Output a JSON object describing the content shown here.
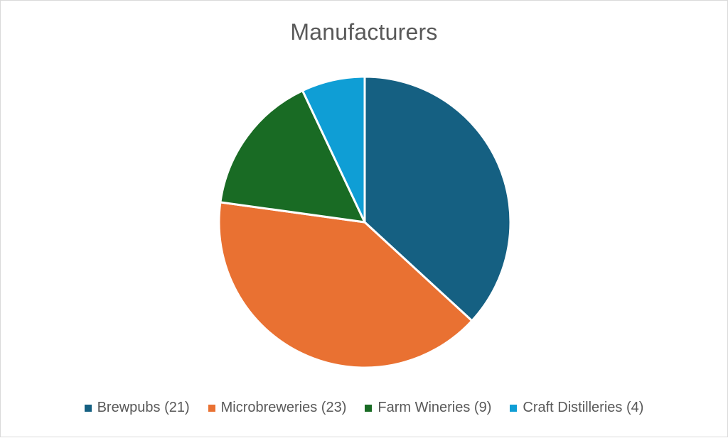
{
  "chart_data": {
    "type": "pie",
    "title": "Manufacturers",
    "categories": [
      "Brewpubs (21)",
      "Microbreweries (23)",
      "Farm Wineries (9)",
      "Craft Distilleries (4)"
    ],
    "values": [
      21,
      23,
      9,
      4
    ],
    "colors": [
      "#156082",
      "#E97132",
      "#196B24",
      "#0F9ED5"
    ],
    "legend_position": "bottom"
  }
}
